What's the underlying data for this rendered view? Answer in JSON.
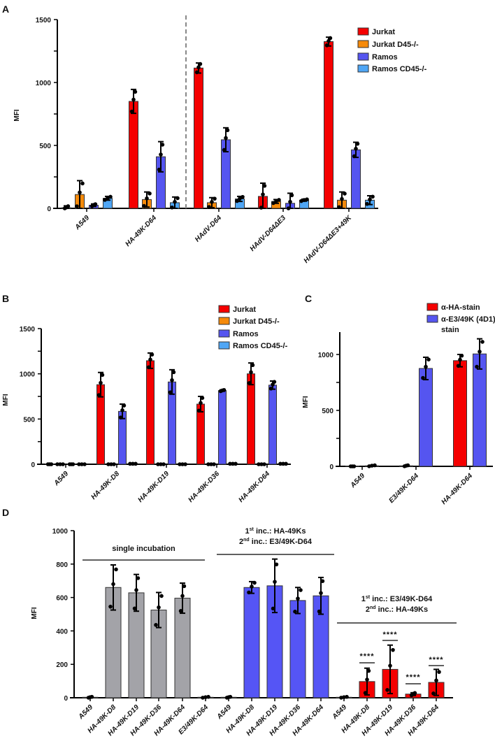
{
  "chart_data": [
    {
      "panel": "A",
      "type": "bar",
      "ylabel": "MFI",
      "ylim": [
        0,
        1500
      ],
      "yticks": [
        0,
        500,
        1000,
        1500
      ],
      "minor_step": 250,
      "categories": [
        "A549",
        "HA-49K-D64",
        "HAdV-D64",
        "HAdV-D64ΔE3",
        "HAdV-D64ΔE3+49K"
      ],
      "divider_after_category": 1,
      "legend_position": "top-right",
      "series": [
        {
          "name": "Jurkat",
          "color": "#f50000",
          "values": [
            5,
            850,
            1115,
            95,
            1325
          ],
          "err": [
            15,
            95,
            40,
            105,
            35
          ]
        },
        {
          "name": "Jurkat D45-/-",
          "color": "#f58a0a",
          "values": [
            110,
            70,
            45,
            55,
            65
          ],
          "err": [
            110,
            60,
            40,
            15,
            65
          ]
        },
        {
          "name": "Ramos",
          "color": "#5555f0",
          "values": [
            25,
            410,
            545,
            40,
            465
          ],
          "err": [
            10,
            120,
            95,
            80,
            60
          ]
        },
        {
          "name": "Ramos CD45-/-",
          "color": "#4fa6f5",
          "values": [
            80,
            45,
            75,
            65,
            65
          ],
          "err": [
            15,
            45,
            20,
            8,
            35
          ]
        }
      ]
    },
    {
      "panel": "B",
      "type": "bar",
      "ylabel": "MFI",
      "ylim": [
        0,
        1500
      ],
      "yticks": [
        0,
        500,
        1000,
        1500
      ],
      "minor_step": 250,
      "categories": [
        "A549",
        "HA-49K-D8",
        "HA-49K-D19",
        "HA-49K-D36",
        "HA-49K-D64"
      ],
      "legend_position": "top-right",
      "series": [
        {
          "name": "Jurkat",
          "color": "#f50000",
          "values": [
            0,
            880,
            1145,
            665,
            1000
          ],
          "err": [
            0,
            135,
            85,
            85,
            120
          ]
        },
        {
          "name": "Jurkat D45-/-",
          "color": "#f58a0a",
          "values": [
            0,
            0,
            0,
            0,
            0
          ],
          "err": [
            0,
            0,
            0,
            0,
            0
          ]
        },
        {
          "name": "Ramos",
          "color": "#5555f0",
          "values": [
            0,
            585,
            910,
            815,
            875
          ],
          "err": [
            0,
            80,
            135,
            8,
            45
          ]
        },
        {
          "name": "Ramos CD45-/-",
          "color": "#4fa6f5",
          "values": [
            0,
            5,
            0,
            5,
            5
          ],
          "err": [
            0,
            0,
            0,
            0,
            0
          ]
        }
      ]
    },
    {
      "panel": "C",
      "type": "bar",
      "ylabel": "MFI",
      "ylim": [
        0,
        1200
      ],
      "yticks": [
        0,
        500,
        1000
      ],
      "minor_step": 250,
      "categories": [
        "A549",
        "E3/49K-D64",
        "HA-49K-D64"
      ],
      "legend_position": "top-right",
      "series": [
        {
          "name": "α-HA-stain",
          "color": "#f50000",
          "values": [
            0,
            5,
            945
          ],
          "err": [
            0,
            5,
            55
          ]
        },
        {
          "name": "α-E3/49K (4D1)",
          "name_line2": "stain",
          "color": "#5555f0",
          "values": [
            5,
            875,
            1005
          ],
          "err": [
            5,
            100,
            135
          ]
        }
      ]
    },
    {
      "panel": "D",
      "type": "bar",
      "ylabel": "MFI",
      "ylim": [
        0,
        1000
      ],
      "yticks": [
        0,
        200,
        400,
        600,
        800,
        1000
      ],
      "minor_step": 200,
      "categories": [
        "A549",
        "HA-49K-D8",
        "HA-49K-D19",
        "HA-49K-D36",
        "HA-49K-D64",
        "E3/49K-D64",
        "A549",
        "HA-49K-D8",
        "HA-49K-D19",
        "HA-49K-D36",
        "HA-49K-D64",
        "A549",
        "HA-49K-D8",
        "HA-49K-D19",
        "HA-49K-D36",
        "HA-49K-D64"
      ],
      "values": [
        3,
        660,
        628,
        525,
        596,
        3,
        3,
        660,
        670,
        582,
        610,
        3,
        97,
        170,
        22,
        92
      ],
      "err": [
        3,
        135,
        110,
        105,
        90,
        3,
        3,
        35,
        160,
        78,
        110,
        3,
        80,
        145,
        8,
        78
      ],
      "colors": [
        "#a3a3a8",
        "#a3a3a8",
        "#a3a3a8",
        "#a3a3a8",
        "#a3a3a8",
        "#a3a3a8",
        "#5555f5",
        "#5555f5",
        "#5555f5",
        "#5555f5",
        "#5555f5",
        "#f50000",
        "#f50000",
        "#f50000",
        "#f50000",
        "#f50000"
      ],
      "groups": [
        {
          "lines": [
            {
              "text": "single incubation"
            }
          ]
        },
        {
          "lines": [
            {
              "ord": "1",
              "sup": "st",
              "text": " inc.: HA-49Ks"
            },
            {
              "ord": "2",
              "sup": "nd",
              "text": " inc.: E3/49K-D64"
            }
          ]
        },
        {
          "lines": [
            {
              "ord": "1",
              "sup": "st",
              "text": " inc.: E3/49K-D64"
            },
            {
              "ord": "2",
              "sup": "nd",
              "text": " inc.: HA-49Ks"
            }
          ]
        }
      ],
      "significance": [
        {
          "category_index": 12,
          "label": "****"
        },
        {
          "category_index": 13,
          "label": "****"
        },
        {
          "category_index": 14,
          "label": "****"
        },
        {
          "category_index": 15,
          "label": "****"
        }
      ]
    }
  ]
}
